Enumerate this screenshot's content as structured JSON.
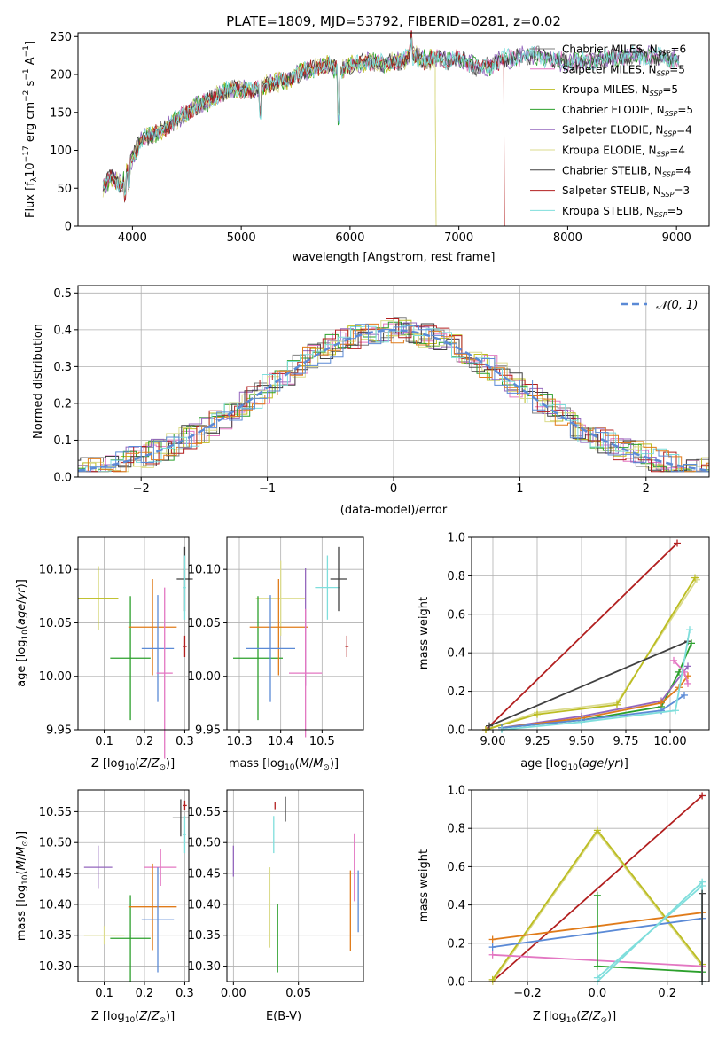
{
  "figure": {
    "title": "PLATE=1809, MJD=53792, FIBERID=0281, z=0.02"
  },
  "colors": {
    "Chabrier MILES": "#7f7f7f",
    "Salpeter MILES": "#e377c2",
    "Kroupa MILES": "#bcbd22",
    "Chabrier ELODIE": "#2ca02c",
    "Salpeter ELODIE": "#9467bd",
    "Kroupa ELODIE": "#dbdb8d",
    "Chabrier STELIB": "#404040",
    "Salpeter STELIB": "#b21f1f",
    "Kroupa STELIB": "#7fdedc",
    "orange": "#e07b1a",
    "blue": "#5b8ad6",
    "olive": "#8a9a5b"
  },
  "chart_data": [
    {
      "id": "spectrum",
      "type": "line",
      "title": "PLATE=1809, MJD=53792, FIBERID=0281, z=0.02",
      "xlabel": "wavelength [Angstrom, rest frame]",
      "ylabel": "Flux [f_λ10^{-17} erg cm^{-2} s^{-1} A^{-1}]",
      "xlim": [
        3500,
        9300
      ],
      "ylim": [
        0,
        255
      ],
      "xticks": [
        4000,
        5000,
        6000,
        7000,
        8000,
        9000
      ],
      "yticks": [
        0,
        50,
        100,
        150,
        200,
        250
      ],
      "grid": false,
      "legend_placement": "right",
      "spectrum_nodes_x": [
        3730,
        3800,
        3900,
        4000,
        4100,
        4200,
        4300,
        4400,
        4500,
        4600,
        4700,
        4800,
        4900,
        5000,
        5100,
        5200,
        5300,
        5400,
        5500,
        5600,
        5700,
        5800,
        5900,
        6000,
        6100,
        6200,
        6300,
        6400,
        6500,
        6600,
        6700,
        6800,
        6900,
        7000,
        7100,
        7200,
        7300,
        7400,
        7500,
        7600,
        7700,
        7800,
        8000,
        8200,
        8400,
        8600,
        8800,
        9000,
        9030
      ],
      "spectrum_nodes_y": [
        50,
        65,
        55,
        90,
        118,
        120,
        130,
        140,
        150,
        160,
        165,
        175,
        180,
        180,
        178,
        185,
        190,
        190,
        200,
        205,
        210,
        212,
        205,
        212,
        214,
        218,
        214,
        217,
        220,
        225,
        218,
        222,
        218,
        220,
        214,
        208,
        212,
        222,
        220,
        225,
        225,
        222,
        215,
        218,
        222,
        225,
        224,
        220,
        220
      ],
      "series": [
        {
          "name": "Chabrier MILES, N_SSP=6",
          "label_main": "Chabrier MILES, N",
          "label_sub": "SSP",
          "label_tail": "=6",
          "color_key": "Chabrier MILES",
          "drop_at": null
        },
        {
          "name": "Salpeter MILES, N_SSP=5",
          "label_main": "Salpeter MILES, N",
          "label_sub": "SSP",
          "label_tail": "=5",
          "color_key": "Salpeter MILES",
          "drop_at": null
        },
        {
          "name": "Kroupa MILES, N_SSP=5",
          "label_main": "Kroupa MILES, N",
          "label_sub": "SSP",
          "label_tail": "=5",
          "color_key": "Kroupa MILES",
          "drop_at": 6790
        },
        {
          "name": "Chabrier ELODIE, N_SSP=5",
          "label_main": "Chabrier ELODIE, N",
          "label_sub": "SSP",
          "label_tail": "=5",
          "color_key": "Chabrier ELODIE",
          "drop_at": null
        },
        {
          "name": "Salpeter ELODIE, N_SSP=4",
          "label_main": "Salpeter ELODIE, N",
          "label_sub": "SSP",
          "label_tail": "=4",
          "color_key": "Salpeter ELODIE",
          "drop_at": null
        },
        {
          "name": "Kroupa ELODIE, N_SSP=4",
          "label_main": "Kroupa ELODIE, N",
          "label_sub": "SSP",
          "label_tail": "=4",
          "color_key": "Kroupa ELODIE",
          "drop_at": 6790
        },
        {
          "name": "Chabrier STELIB, N_SSP=4",
          "label_main": "Chabrier STELIB, N",
          "label_sub": "SSP",
          "label_tail": "=4",
          "color_key": "Chabrier STELIB",
          "drop_at": null
        },
        {
          "name": "Salpeter STELIB, N_SSP=3",
          "label_main": "Salpeter STELIB, N",
          "label_sub": "SSP",
          "label_tail": "=3",
          "color_key": "Salpeter STELIB",
          "drop_at": 7420
        },
        {
          "name": "Kroupa STELIB, N_SSP=5",
          "label_main": "Kroupa STELIB, N",
          "label_sub": "SSP",
          "label_tail": "=5",
          "color_key": "Kroupa STELIB",
          "drop_at": null
        }
      ]
    },
    {
      "id": "residuals",
      "type": "line",
      "xlabel": "(data-model)/error",
      "ylabel": "Normed distribution",
      "xlim": [
        -2.5,
        2.5
      ],
      "ylim": [
        0,
        0.52
      ],
      "xticks": [
        -2,
        -1,
        0,
        1,
        2
      ],
      "yticks": [
        0.0,
        0.1,
        0.2,
        0.3,
        0.4,
        0.5
      ],
      "grid": true,
      "legend_placement": "top-right",
      "reference_curve": {
        "name": "N(0,1)",
        "label": "𝒩(0, 1)",
        "color_key": "blue",
        "mean": 0,
        "sigma": 1
      },
      "histogram_bin_width": 0.1,
      "histograms": [
        "Chabrier MILES",
        "Salpeter MILES",
        "Kroupa MILES",
        "Chabrier ELODIE",
        "Salpeter ELODIE",
        "Kroupa ELODIE",
        "Chabrier STELIB",
        "Salpeter STELIB",
        "Kroupa STELIB",
        "orange",
        "blue"
      ]
    },
    {
      "id": "age_vs_Z",
      "type": "scatter",
      "xlabel": "Z [log10(Z/Z⊙)]",
      "ylabel": "age [log10(age/yr)]",
      "xlim": [
        0.035,
        0.31
      ],
      "ylim": [
        9.95,
        10.13
      ],
      "xticks": [
        0.1,
        0.2,
        0.3
      ],
      "yticks": [
        9.95,
        10.0,
        10.05,
        10.1
      ],
      "grid": true,
      "points": [
        {
          "color_key": "Kroupa ELODIE",
          "x": 0.085,
          "xerr": 0.05,
          "y": 10.073,
          "yerr": 0.03
        },
        {
          "color_key": "Kroupa MILES",
          "x": 0.085,
          "xerr": 0.05,
          "y": 10.073,
          "yerr": 0.03
        },
        {
          "color_key": "Chabrier ELODIE",
          "x": 0.165,
          "xerr": 0.05,
          "y": 10.017,
          "yerr": 0.058
        },
        {
          "color_key": "orange",
          "x": 0.22,
          "xerr": 0.06,
          "y": 10.046,
          "yerr": 0.045
        },
        {
          "color_key": "blue",
          "x": 0.233,
          "xerr": 0.04,
          "y": 10.026,
          "yerr": 0.05
        },
        {
          "color_key": "Salpeter MILES",
          "x": 0.25,
          "xerr": 0.02,
          "y": 10.003,
          "yerr": 0.08
        },
        {
          "color_key": "Chabrier STELIB",
          "x": 0.3,
          "xerr": 0.02,
          "y": 10.091,
          "yerr": 0.03
        },
        {
          "color_key": "Salpeter STELIB",
          "x": 0.3,
          "xerr": 0.005,
          "y": 10.028,
          "yerr": 0.01
        },
        {
          "color_key": "Kroupa STELIB",
          "x": 0.3,
          "xerr": 0.003,
          "y": 10.083,
          "yerr": 0.03
        }
      ]
    },
    {
      "id": "age_vs_mass",
      "type": "scatter",
      "xlabel": "mass [log10(M/M⊙)]",
      "xlim": [
        10.27,
        10.6
      ],
      "ylim": [
        9.95,
        10.13
      ],
      "xticks": [
        10.3,
        10.4,
        10.5
      ],
      "yticks": [
        9.95,
        10.0,
        10.05,
        10.1
      ],
      "grid": true,
      "points": [
        {
          "color_key": "Kroupa ELODIE",
          "x": 10.4,
          "xerr": 0.06,
          "y": 10.073,
          "yerr": 0.035
        },
        {
          "color_key": "Chabrier ELODIE",
          "x": 10.345,
          "xerr": 0.06,
          "y": 10.017,
          "yerr": 0.058
        },
        {
          "color_key": "orange",
          "x": 10.395,
          "xerr": 0.07,
          "y": 10.046,
          "yerr": 0.045
        },
        {
          "color_key": "blue",
          "x": 10.375,
          "xerr": 0.06,
          "y": 10.026,
          "yerr": 0.05
        },
        {
          "color_key": "Salpeter ELODIE",
          "x": 10.46,
          "xerr": 0.002,
          "y": 10.046,
          "yerr": 0.055
        },
        {
          "color_key": "Salpeter MILES",
          "x": 10.46,
          "xerr": 0.04,
          "y": 10.003,
          "yerr": 0.06
        },
        {
          "color_key": "Kroupa STELIB",
          "x": 10.513,
          "xerr": 0.03,
          "y": 10.083,
          "yerr": 0.03
        },
        {
          "color_key": "Chabrier STELIB",
          "x": 10.54,
          "xerr": 0.02,
          "y": 10.091,
          "yerr": 0.03
        },
        {
          "color_key": "Salpeter STELIB",
          "x": 10.56,
          "xerr": 0.004,
          "y": 10.028,
          "yerr": 0.01
        }
      ]
    },
    {
      "id": "weight_vs_age",
      "type": "line",
      "xlabel": "age [log10(age/yr)]",
      "ylabel": "mass weight",
      "xlim": [
        8.88,
        10.22
      ],
      "ylim": [
        0,
        1.0
      ],
      "xticks": [
        9.0,
        9.25,
        9.5,
        9.75,
        10.0
      ],
      "yticks": [
        0.0,
        0.2,
        0.4,
        0.6,
        0.8,
        1.0
      ],
      "grid": true,
      "series": [
        {
          "color_key": "Salpeter STELIB",
          "x": [
            8.96,
            10.04
          ],
          "y": [
            0.0,
            0.97
          ]
        },
        {
          "color_key": "Kroupa ELODIE",
          "x": [
            8.96,
            9.25,
            9.7,
            10.15
          ],
          "y": [
            0.0,
            0.09,
            0.14,
            0.78
          ]
        },
        {
          "color_key": "Kroupa MILES",
          "x": [
            8.96,
            9.25,
            9.7,
            10.14
          ],
          "y": [
            0.0,
            0.08,
            0.13,
            0.79
          ]
        },
        {
          "color_key": "Chabrier STELIB",
          "x": [
            8.98,
            10.1
          ],
          "y": [
            0.02,
            0.46
          ]
        },
        {
          "color_key": "Chabrier ELODIE",
          "x": [
            9.05,
            9.5,
            9.95,
            10.05,
            10.12
          ],
          "y": [
            0.01,
            0.05,
            0.12,
            0.3,
            0.45
          ]
        },
        {
          "color_key": "Salpeter ELODIE",
          "x": [
            9.05,
            9.5,
            9.95,
            10.1
          ],
          "y": [
            0.01,
            0.07,
            0.15,
            0.33
          ]
        },
        {
          "color_key": "orange",
          "x": [
            9.05,
            9.5,
            9.95,
            10.05,
            10.1
          ],
          "y": [
            0.01,
            0.06,
            0.14,
            0.22,
            0.28
          ]
        },
        {
          "color_key": "blue",
          "x": [
            9.05,
            9.5,
            9.95,
            10.08
          ],
          "y": [
            0.01,
            0.05,
            0.1,
            0.18
          ]
        },
        {
          "color_key": "Salpeter MILES",
          "x": [
            10.02,
            10.08,
            10.1
          ],
          "y": [
            0.36,
            0.3,
            0.24
          ]
        },
        {
          "color_key": "Kroupa STELIB",
          "x": [
            9.05,
            9.5,
            10.03,
            10.11
          ],
          "y": [
            0.0,
            0.04,
            0.1,
            0.52
          ]
        }
      ]
    },
    {
      "id": "mass_vs_Z",
      "type": "scatter",
      "xlabel": "Z [log10(Z/Z⊙)]",
      "ylabel": "mass [log10(M/M⊙)]",
      "xlim": [
        0.035,
        0.31
      ],
      "ylim": [
        10.275,
        10.585
      ],
      "xticks": [
        0.1,
        0.2,
        0.3
      ],
      "yticks": [
        10.3,
        10.35,
        10.4,
        10.45,
        10.5,
        10.55
      ],
      "grid": true,
      "points": [
        {
          "color_key": "Salpeter ELODIE",
          "x": 0.085,
          "xerr": 0.035,
          "y": 10.46,
          "yerr": 0.035
        },
        {
          "color_key": "Kroupa ELODIE",
          "x": 0.1,
          "xerr": 0.05,
          "y": 10.35,
          "yerr": 0.015
        },
        {
          "color_key": "Chabrier ELODIE",
          "x": 0.165,
          "xerr": 0.05,
          "y": 10.345,
          "yerr": 0.07
        },
        {
          "color_key": "Salpeter MILES",
          "x": 0.24,
          "xerr": 0.04,
          "y": 10.46,
          "yerr": 0.03
        },
        {
          "color_key": "orange",
          "x": 0.22,
          "xerr": 0.06,
          "y": 10.396,
          "yerr": 0.07
        },
        {
          "color_key": "blue",
          "x": 0.233,
          "xerr": 0.04,
          "y": 10.375,
          "yerr": 0.085
        },
        {
          "color_key": "Chabrier STELIB",
          "x": 0.29,
          "xerr": 0.02,
          "y": 10.54,
          "yerr": 0.03
        },
        {
          "color_key": "Salpeter STELIB",
          "x": 0.3,
          "xerr": 0.005,
          "y": 10.56,
          "yerr": 0.008
        },
        {
          "color_key": "Kroupa STELIB",
          "x": 0.3,
          "xerr": 0.003,
          "y": 10.513,
          "yerr": 0.03
        }
      ]
    },
    {
      "id": "mass_vs_EBV",
      "type": "scatter",
      "xlabel": "E(B-V)",
      "xlim": [
        -0.005,
        0.1
      ],
      "ylim": [
        10.275,
        10.585
      ],
      "xticks": [
        0.0,
        0.05
      ],
      "yticks": [
        10.3,
        10.35,
        10.4,
        10.45,
        10.5,
        10.55
      ],
      "grid": true,
      "points": [
        {
          "color_key": "Salpeter ELODIE",
          "x": 0.0,
          "xerr": 0.0,
          "y": 10.47,
          "yerr": 0.025
        },
        {
          "color_key": "Kroupa ELODIE",
          "x": 0.028,
          "xerr": 0.0,
          "y": 10.395,
          "yerr": 0.065
        },
        {
          "color_key": "Kroupa STELIB",
          "x": 0.031,
          "xerr": 0.0,
          "y": 10.513,
          "yerr": 0.03
        },
        {
          "color_key": "Chabrier ELODIE",
          "x": 0.034,
          "xerr": 0.0,
          "y": 10.345,
          "yerr": 0.055
        },
        {
          "color_key": "Salpeter STELIB",
          "x": 0.032,
          "xerr": 0.0,
          "y": 10.56,
          "yerr": 0.006
        },
        {
          "color_key": "Chabrier STELIB",
          "x": 0.04,
          "xerr": 0.0,
          "y": 10.554,
          "yerr": 0.02
        },
        {
          "color_key": "orange",
          "x": 0.09,
          "xerr": 0.0,
          "y": 10.39,
          "yerr": 0.065
        },
        {
          "color_key": "Salpeter MILES",
          "x": 0.093,
          "xerr": 0.0,
          "y": 10.46,
          "yerr": 0.055
        },
        {
          "color_key": "blue",
          "x": 0.096,
          "xerr": 0.0,
          "y": 10.405,
          "yerr": 0.05
        }
      ]
    },
    {
      "id": "weight_vs_Z",
      "type": "line",
      "xlabel": "Z [log10(Z/Z⊙)]",
      "ylabel": "mass weight",
      "xlim": [
        -0.36,
        0.32
      ],
      "ylim": [
        0,
        1.0
      ],
      "xticks": [
        -0.2,
        0.0,
        0.2
      ],
      "yticks": [
        0.0,
        0.2,
        0.4,
        0.6,
        0.8,
        1.0
      ],
      "grid": true,
      "series": [
        {
          "color_key": "Salpeter STELIB",
          "x": [
            -0.3,
            0.3
          ],
          "y": [
            0.0,
            0.97
          ]
        },
        {
          "color_key": "Kroupa ELODIE",
          "x": [
            -0.3,
            0.0,
            0.3
          ],
          "y": [
            0.0,
            0.78,
            0.08
          ]
        },
        {
          "color_key": "Kroupa MILES",
          "x": [
            -0.3,
            0.0,
            0.3
          ],
          "y": [
            0.01,
            0.79,
            0.09
          ]
        },
        {
          "color_key": "orange",
          "x": [
            -0.3,
            0.3
          ],
          "y": [
            0.22,
            0.36
          ]
        },
        {
          "color_key": "blue",
          "x": [
            -0.3,
            0.3
          ],
          "y": [
            0.18,
            0.33
          ]
        },
        {
          "color_key": "Salpeter MILES",
          "x": [
            -0.3,
            0.3
          ],
          "y": [
            0.14,
            0.08
          ]
        },
        {
          "color_key": "Chabrier ELODIE",
          "x": [
            0.0,
            0.0,
            0.3
          ],
          "y": [
            0.45,
            0.08,
            0.05
          ]
        },
        {
          "color_key": "Kroupa STELIB",
          "x": [
            0.0,
            0.3,
            0.3
          ],
          "y": [
            0.0,
            0.52,
            0.0
          ]
        },
        {
          "color_key": "Chabrier STELIB",
          "x": [
            0.3,
            0.3
          ],
          "y": [
            0.0,
            0.46
          ]
        },
        {
          "color_key": "Kroupa STELIB",
          "x": [
            0.0,
            0.3
          ],
          "y": [
            0.02,
            0.5
          ]
        }
      ]
    }
  ]
}
